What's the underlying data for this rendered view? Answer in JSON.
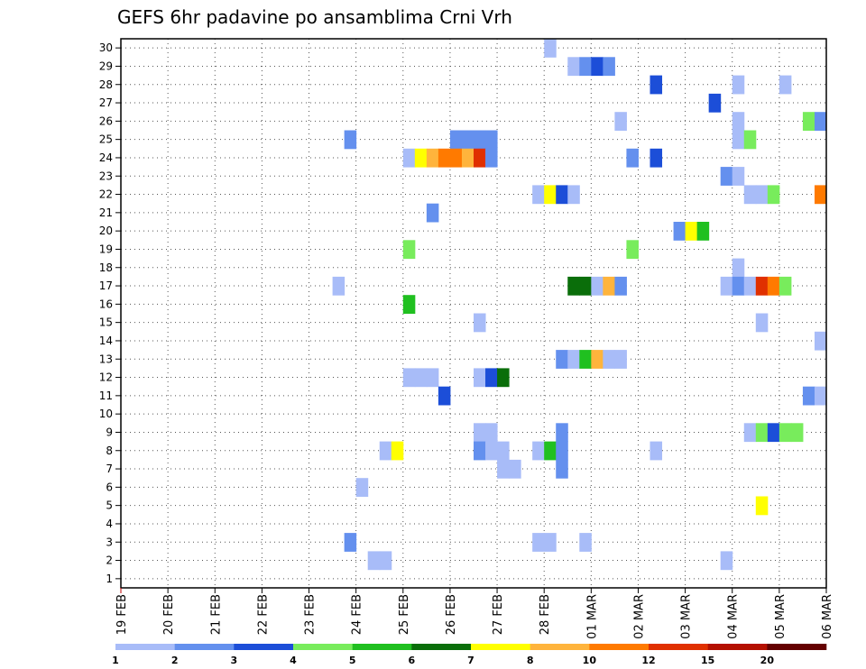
{
  "chart_data": {
    "type": "heatmap",
    "title": "GEFS 6hr padavine po ansamblima Crni Vrh",
    "xlabel": "",
    "ylabel": "",
    "x_ticks": [
      "19 FEB",
      "20 FEB",
      "21 FEB",
      "22 FEB",
      "23 FEB",
      "24 FEB",
      "25 FEB",
      "26 FEB",
      "27 FEB",
      "28 FEB",
      "01 MAR",
      "02 MAR",
      "03 MAR",
      "04 MAR",
      "05 MAR",
      "06 MAR"
    ],
    "y_ticks": [
      "1",
      "2",
      "3",
      "4",
      "5",
      "6",
      "7",
      "8",
      "9",
      "10",
      "11",
      "12",
      "13",
      "14",
      "15",
      "16",
      "17",
      "18",
      "19",
      "20",
      "21",
      "22",
      "23",
      "24",
      "25",
      "26",
      "27",
      "28",
      "29",
      "30"
    ],
    "x_range": [
      0,
      60
    ],
    "y_range": [
      0.5,
      30.5
    ],
    "grid": true,
    "legend": {
      "placement": "bottom",
      "labels": [
        "1",
        "2",
        "3",
        "4",
        "5",
        "6",
        "7",
        "8",
        "10",
        "12",
        "15",
        "20"
      ],
      "colors": [
        "#a8bcf8",
        "#6490ee",
        "#1c4ed8",
        "#78ec5c",
        "#20c020",
        "#0a6e0a",
        "#ffff00",
        "#ffb43c",
        "#ff7a00",
        "#e03000",
        "#b41000",
        "#640000"
      ]
    },
    "levels": [
      "#a8bcf8",
      "#6490ee",
      "#1c4ed8",
      "#78ec5c",
      "#20c020",
      "#0a6e0a",
      "#ffff00",
      "#ffb43c",
      "#ff7a00",
      "#e03000",
      "#b41000"
    ],
    "cells": [
      [
        37,
        30,
        0
      ],
      [
        39,
        29,
        0
      ],
      [
        40,
        29,
        1
      ],
      [
        41,
        29,
        2
      ],
      [
        42,
        29,
        1
      ],
      [
        46,
        28,
        2
      ],
      [
        53,
        28,
        0
      ],
      [
        57,
        28,
        0
      ],
      [
        51,
        27,
        2
      ],
      [
        43,
        26,
        0
      ],
      [
        53,
        26,
        0
      ],
      [
        59,
        26,
        3
      ],
      [
        60,
        26,
        1
      ],
      [
        20,
        25,
        1
      ],
      [
        29,
        25,
        1
      ],
      [
        30,
        25,
        1
      ],
      [
        31,
        25,
        1
      ],
      [
        32,
        25,
        1
      ],
      [
        53,
        25,
        0
      ],
      [
        54,
        25,
        3
      ],
      [
        25,
        24,
        0
      ],
      [
        26,
        24,
        6
      ],
      [
        27,
        24,
        7
      ],
      [
        28,
        24,
        8
      ],
      [
        29,
        24,
        8
      ],
      [
        30,
        24,
        7
      ],
      [
        31,
        24,
        9
      ],
      [
        32,
        24,
        1
      ],
      [
        44,
        24,
        1
      ],
      [
        46,
        24,
        2
      ],
      [
        52,
        23,
        1
      ],
      [
        53,
        23,
        0
      ],
      [
        36,
        22,
        0
      ],
      [
        37,
        22,
        6
      ],
      [
        38,
        22,
        2
      ],
      [
        39,
        22,
        0
      ],
      [
        54,
        22,
        0
      ],
      [
        55,
        22,
        0
      ],
      [
        56,
        22,
        3
      ],
      [
        60,
        22,
        8
      ],
      [
        27,
        21,
        1
      ],
      [
        48,
        20,
        1
      ],
      [
        49,
        20,
        6
      ],
      [
        50,
        20,
        4
      ],
      [
        25,
        19,
        3
      ],
      [
        44,
        19,
        3
      ],
      [
        53,
        18,
        0
      ],
      [
        19,
        17,
        0
      ],
      [
        39,
        17,
        5
      ],
      [
        40,
        17,
        5
      ],
      [
        41,
        17,
        0
      ],
      [
        42,
        17,
        7
      ],
      [
        43,
        17,
        1
      ],
      [
        52,
        17,
        0
      ],
      [
        53,
        17,
        1
      ],
      [
        54,
        17,
        0
      ],
      [
        55,
        17,
        9
      ],
      [
        56,
        17,
        8
      ],
      [
        57,
        17,
        3
      ],
      [
        25,
        16,
        4
      ],
      [
        31,
        15,
        0
      ],
      [
        55,
        15,
        0
      ],
      [
        60,
        14,
        0
      ],
      [
        38,
        13,
        1
      ],
      [
        39,
        13,
        0
      ],
      [
        40,
        13,
        4
      ],
      [
        41,
        13,
        7
      ],
      [
        42,
        13,
        0
      ],
      [
        43,
        13,
        0
      ],
      [
        25,
        12,
        0
      ],
      [
        26,
        12,
        0
      ],
      [
        27,
        12,
        0
      ],
      [
        31,
        12,
        0
      ],
      [
        32,
        12,
        2
      ],
      [
        33,
        12,
        5
      ],
      [
        28,
        11,
        2
      ],
      [
        59,
        11,
        1
      ],
      [
        60,
        11,
        0
      ],
      [
        31,
        9,
        0
      ],
      [
        32,
        9,
        0
      ],
      [
        38,
        9,
        1
      ],
      [
        54,
        9,
        0
      ],
      [
        55,
        9,
        3
      ],
      [
        56,
        9,
        2
      ],
      [
        57,
        9,
        3
      ],
      [
        58,
        9,
        3
      ],
      [
        23,
        8,
        0
      ],
      [
        24,
        8,
        6
      ],
      [
        31,
        8,
        1
      ],
      [
        32,
        8,
        0
      ],
      [
        33,
        8,
        0
      ],
      [
        36,
        8,
        0
      ],
      [
        37,
        8,
        4
      ],
      [
        38,
        8,
        1
      ],
      [
        46,
        8,
        0
      ],
      [
        33,
        7,
        0
      ],
      [
        34,
        7,
        0
      ],
      [
        38,
        7,
        1
      ],
      [
        21,
        6,
        0
      ],
      [
        55,
        5,
        6
      ],
      [
        20,
        3,
        1
      ],
      [
        36,
        3,
        0
      ],
      [
        37,
        3,
        0
      ],
      [
        40,
        3,
        0
      ],
      [
        22,
        2,
        0
      ],
      [
        23,
        2,
        0
      ],
      [
        52,
        2,
        0
      ]
    ]
  }
}
